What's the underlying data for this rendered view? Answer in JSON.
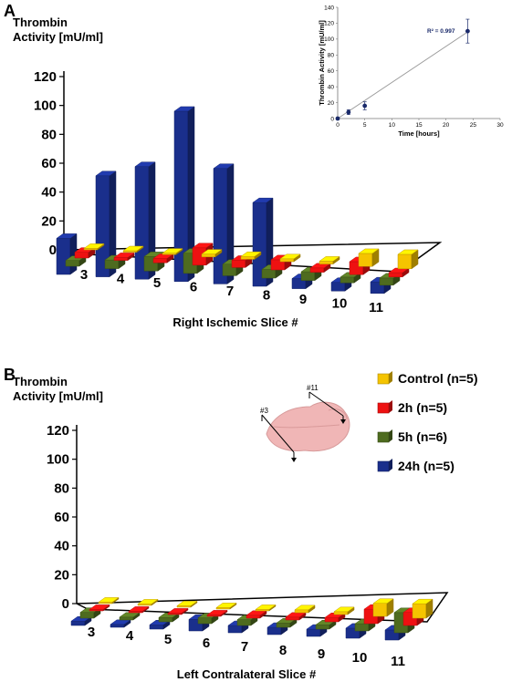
{
  "panels": {
    "a_label": "A",
    "b_label": "B"
  },
  "legend": {
    "items": [
      {
        "label": "Control (n=5)",
        "color": "#f5c400"
      },
      {
        "label": "2h (n=5)",
        "color": "#ee1111"
      },
      {
        "label": "5h (n=6)",
        "color": "#4e6b1f"
      },
      {
        "label": "24h (n=5)",
        "color": "#1a2f8c"
      }
    ]
  },
  "brain": {
    "label_a": "#3",
    "label_b": "#11"
  },
  "chart_data": [
    {
      "type": "bar",
      "title": "Thrombin Activity [mU/ml]",
      "xlabel": "Right Ischemic Slice #",
      "ylabel": "",
      "ylim": [
        0,
        120
      ],
      "yticks": [
        0,
        20,
        40,
        60,
        80,
        100,
        120
      ],
      "categories": [
        "3",
        "4",
        "5",
        "6",
        "7",
        "8",
        "9",
        "10",
        "11"
      ],
      "series": [
        {
          "name": "Control (n=5)",
          "values": [
            1,
            1,
            1,
            2,
            2,
            2,
            2,
            9,
            10
          ]
        },
        {
          "name": "2h (n=5)",
          "values": [
            4,
            2,
            3,
            12,
            5,
            7,
            3,
            9,
            3
          ]
        },
        {
          "name": "5h (n=6)",
          "values": [
            4,
            6,
            10,
            14,
            8,
            6,
            6,
            4,
            5
          ]
        },
        {
          "name": "24h (n=5)",
          "values": [
            25,
            70,
            78,
            118,
            80,
            58,
            7,
            6,
            8
          ]
        }
      ]
    },
    {
      "type": "scatter",
      "title": "",
      "xlabel": "Time [hours]",
      "ylabel": "Thrombin Activity [mU/ml]",
      "xlim": [
        0,
        30
      ],
      "ylim": [
        0,
        140
      ],
      "xticks": [
        0,
        5,
        10,
        15,
        20,
        25,
        30
      ],
      "yticks": [
        0,
        20,
        40,
        60,
        80,
        100,
        120,
        140
      ],
      "annotation": "R² = 0.997",
      "points": [
        {
          "x": 0,
          "y": 0,
          "err": 0
        },
        {
          "x": 2,
          "y": 8,
          "err": 3
        },
        {
          "x": 5,
          "y": 16,
          "err": 5
        },
        {
          "x": 24,
          "y": 110,
          "err": 15
        }
      ],
      "fit": {
        "x": [
          0,
          24
        ],
        "y": [
          0,
          109
        ]
      }
    },
    {
      "type": "bar",
      "title": "Thrombin Activity [mU/ml]",
      "xlabel": "Left Contralateral Slice #",
      "ylabel": "",
      "ylim": [
        0,
        120
      ],
      "yticks": [
        0,
        20,
        40,
        60,
        80,
        100,
        120
      ],
      "categories": [
        "3",
        "4",
        "5",
        "6",
        "7",
        "8",
        "9",
        "10",
        "11"
      ],
      "series": [
        {
          "name": "Control (n=5)",
          "values": [
            1,
            1,
            1,
            1,
            1,
            2,
            2,
            9,
            10
          ]
        },
        {
          "name": "2h (n=5)",
          "values": [
            1,
            1,
            1,
            1,
            2,
            2,
            3,
            10,
            9
          ]
        },
        {
          "name": "5h (n=6)",
          "values": [
            4,
            2,
            3,
            4,
            4,
            3,
            3,
            5,
            14
          ]
        },
        {
          "name": "24h (n=5)",
          "values": [
            3,
            2,
            3,
            8,
            5,
            5,
            5,
            7,
            7
          ]
        }
      ]
    }
  ]
}
